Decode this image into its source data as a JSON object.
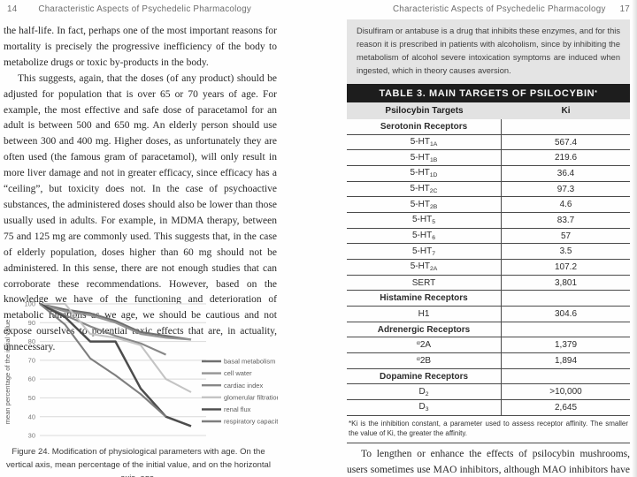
{
  "book": {
    "title": "Characteristic Aspects of Psychedelic Pharmacology",
    "left_page_number": "14",
    "right_page_number": "17"
  },
  "left_page": {
    "para1": "the half-life. In fact, perhaps one of the most important reasons for mortality is precisely the progressive inefficiency of the body to metabo­lize drugs or toxic by-products in the body.",
    "para2": "This suggests, again, that the doses (of any product) should be adjusted for population that is over 65 or 70 years of age. For example, the most effective and safe dose of paracetamol for an adult is between 500 and 650 mg. An elderly person should use between 300 and 400 mg. Higher doses, as unfortunately they are often used (the famous gram of paracetamol), will only result in more liver damage and not in greater efficacy, since efficacy has a “ceiling”, but toxicity does not. In the case of psychoactive substances, the administered doses should also be lower than those usually used in adults. For example, in MDMA therapy, between 75 and 125 mg are commonly used. This suggests that, in the case of elderly population, doses higher than 60 mg should not be administered. In this sense, there are not enough studies that can corroborate these recommendations. However, based on the knowledge we have of the functioning and deterioration of metabolic functions as we age, we should be cautious and not expose ourselves to potential toxic effects that are, in actuality, unnecessary.",
    "figure_caption": "Figure 24. Modification of physiological parameters with age. On the vertical axis, mean percentage of the initial value, and on the horizontal axis, age."
  },
  "right_page": {
    "highlight_box": "Disulfiram or antabuse is a drug that inhibits these enzymes, and for this reason it is prescribed in patients with alcoholism, since by inhib­iting the metabolism of alcohol severe intoxication symptoms are induced when ingested, which in theory causes aversion.",
    "table": {
      "title": "TABLE 3. MAIN TARGETS OF PSILOCYBIN",
      "title_marker": "*",
      "col_headers": [
        "Psilocybin Targets",
        "Ki"
      ],
      "rows": [
        {
          "type": "section",
          "label": "Serotonin Receptors"
        },
        {
          "type": "data",
          "parts": [
            {
              "t": "5-HT"
            },
            {
              "t": "1A",
              "s": "sub"
            }
          ],
          "ki": "567.4"
        },
        {
          "type": "data",
          "parts": [
            {
              "t": "5-HT"
            },
            {
              "t": "1B",
              "s": "sub"
            }
          ],
          "ki": "219.6"
        },
        {
          "type": "data",
          "parts": [
            {
              "t": "5-HT"
            },
            {
              "t": "1D",
              "s": "sub"
            }
          ],
          "ki": "36.4"
        },
        {
          "type": "data",
          "parts": [
            {
              "t": "5-HT"
            },
            {
              "t": "2C",
              "s": "sub"
            }
          ],
          "ki": "97.3"
        },
        {
          "type": "data",
          "parts": [
            {
              "t": "5-HT"
            },
            {
              "t": "2B",
              "s": "sub"
            }
          ],
          "ki": "4.6"
        },
        {
          "type": "data",
          "parts": [
            {
              "t": "5-HT"
            },
            {
              "t": "5",
              "s": "sub"
            }
          ],
          "ki": "83.7"
        },
        {
          "type": "data",
          "parts": [
            {
              "t": "5-HT"
            },
            {
              "t": "6",
              "s": "sub"
            }
          ],
          "ki": "57"
        },
        {
          "type": "data",
          "parts": [
            {
              "t": "5-HT"
            },
            {
              "t": "7",
              "s": "sub"
            }
          ],
          "ki": "3.5"
        },
        {
          "type": "data",
          "parts": [
            {
              "t": "5-HT"
            },
            {
              "t": "2A",
              "s": "sub"
            }
          ],
          "ki": "107.2"
        },
        {
          "type": "data",
          "parts": [
            {
              "t": "SERT"
            }
          ],
          "ki": "3,801"
        },
        {
          "type": "section",
          "label": "Histamine Receptors"
        },
        {
          "type": "data",
          "parts": [
            {
              "t": "H1"
            }
          ],
          "ki": "304.6"
        },
        {
          "type": "section",
          "label": "Adrenergic Receptors"
        },
        {
          "type": "data",
          "parts": [
            {
              "t": "α",
              "s": "sup"
            },
            {
              "t": "2A"
            }
          ],
          "ki": "1,379"
        },
        {
          "type": "data",
          "parts": [
            {
              "t": "α",
              "s": "sup"
            },
            {
              "t": "2B"
            }
          ],
          "ki": "1,894"
        },
        {
          "type": "section",
          "label": "Dopamine Receptors"
        },
        {
          "type": "data",
          "parts": [
            {
              "t": "D"
            },
            {
              "t": "2",
              "s": "sub"
            }
          ],
          "ki": ">10,000"
        },
        {
          "type": "data",
          "parts": [
            {
              "t": "D"
            },
            {
              "t": "3",
              "s": "sub"
            }
          ],
          "ki": "2,645"
        }
      ],
      "footnote": "*Ki is the inhibition constant, a parameter used to assess receptor affinity. The smaller the value of Ki, the greater the affinity."
    },
    "body_paragraph": "To lengthen or enhance the effects of psilocybin mushrooms, users sometimes use MAO inhibitors, although MAO inhibitors have also"
  },
  "chart_data": {
    "type": "line",
    "title": "",
    "xlabel": "age",
    "ylabel": "mean percentage of the initial value",
    "x": [
      30,
      40,
      50,
      60,
      70,
      80,
      90
    ],
    "x_ticks_visible": false,
    "ylim": [
      30,
      100
    ],
    "yticks": [
      30,
      40,
      50,
      60,
      70,
      80,
      90,
      100
    ],
    "grid": true,
    "legend_position": "right",
    "series": [
      {
        "name": "basal metabolism",
        "color": "#6f6f6f",
        "values": [
          100,
          97,
          95,
          91,
          85,
          83,
          81
        ]
      },
      {
        "name": "cell water",
        "color": "#949494",
        "values": [
          100,
          96,
          94,
          90,
          84,
          82,
          81
        ]
      },
      {
        "name": "cardiac index",
        "color": "#878787",
        "values": [
          100,
          94,
          88,
          83,
          79,
          73,
          null
        ]
      },
      {
        "name": "glomerular filtration",
        "color": "#c4c4c4",
        "values": [
          100,
          100,
          84,
          82,
          78,
          60,
          53
        ]
      },
      {
        "name": "renal flux",
        "color": "#4c4c4c",
        "values": [
          100,
          93,
          80,
          80,
          55,
          40,
          35
        ]
      },
      {
        "name": "respiratory capacity",
        "color": "#7e7e7e",
        "values": [
          100,
          89,
          71,
          62,
          52,
          40,
          null
        ]
      }
    ]
  }
}
